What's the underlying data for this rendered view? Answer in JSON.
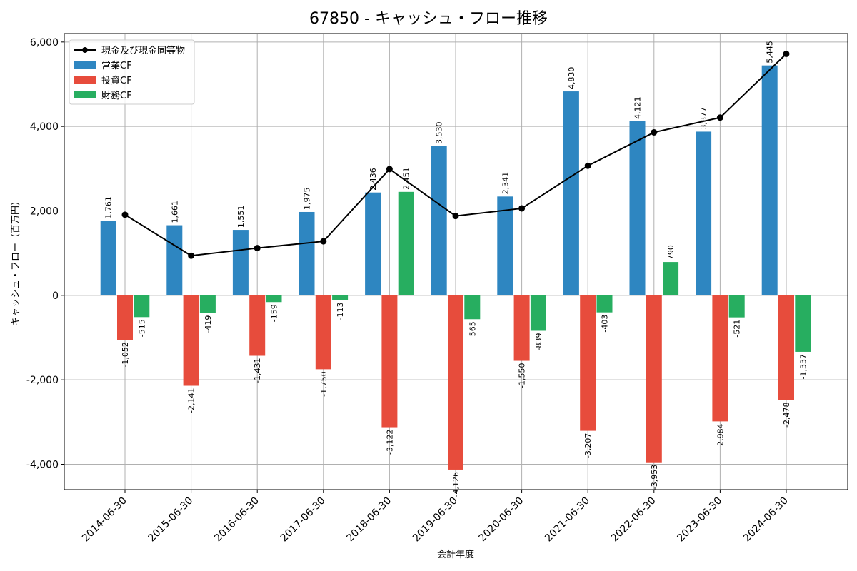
{
  "chart_data": {
    "type": "bar",
    "title": "67850 - キャッシュ・フロー推移",
    "xlabel": "会計年度",
    "ylabel": "キャッシュ・フロー（百万円）",
    "categories": [
      "2014-06-30",
      "2015-06-30",
      "2016-06-30",
      "2017-06-30",
      "2018-06-30",
      "2019-06-30",
      "2020-06-30",
      "2021-06-30",
      "2022-06-30",
      "2023-06-30",
      "2024-06-30"
    ],
    "ylim": [
      -4600,
      6200
    ],
    "yticks": [
      -4000,
      -2000,
      0,
      2000,
      4000,
      6000
    ],
    "ytick_labels": [
      "-4,000",
      "-2,000",
      "0",
      "2,000",
      "4,000",
      "6,000"
    ],
    "grid": true,
    "legend_position": "top-left",
    "series": [
      {
        "name": "営業CF",
        "type": "bar",
        "color": "#2e86c1",
        "values": [
          1761,
          1661,
          1551,
          1975,
          2436,
          3530,
          2341,
          4830,
          4121,
          3877,
          5445
        ],
        "labels": [
          "1,761",
          "1,661",
          "1,551",
          "1,975",
          "2,436",
          "3,530",
          "2,341",
          "4,830",
          "4,121",
          "3,877",
          "5,445"
        ]
      },
      {
        "name": "投資CF",
        "type": "bar",
        "color": "#e74c3c",
        "values": [
          -1052,
          -2141,
          -1431,
          -1750,
          -3122,
          -4126,
          -1550,
          -3207,
          -3953,
          -2984,
          -2478
        ],
        "labels": [
          "-1,052",
          "-2,141",
          "-1,431",
          "-1,750",
          "-3,122",
          "-4,126",
          "-1,550",
          "-3,207",
          "-3,953",
          "-2,984",
          "-2,478"
        ]
      },
      {
        "name": "財務CF",
        "type": "bar",
        "color": "#27ae60",
        "values": [
          -515,
          -419,
          -159,
          -113,
          2451,
          -565,
          -839,
          -403,
          790,
          -521,
          -1337
        ],
        "labels": [
          "-515",
          "-419",
          "-159",
          "-113",
          "2,451",
          "-565",
          "-839",
          "-403",
          "790",
          "-521",
          "-1,337"
        ]
      },
      {
        "name": "現金及び現金同等物",
        "type": "line",
        "color": "#000000",
        "values": [
          1910,
          940,
          1120,
          1280,
          2990,
          1880,
          2060,
          3070,
          3860,
          4210,
          5720
        ]
      }
    ]
  }
}
